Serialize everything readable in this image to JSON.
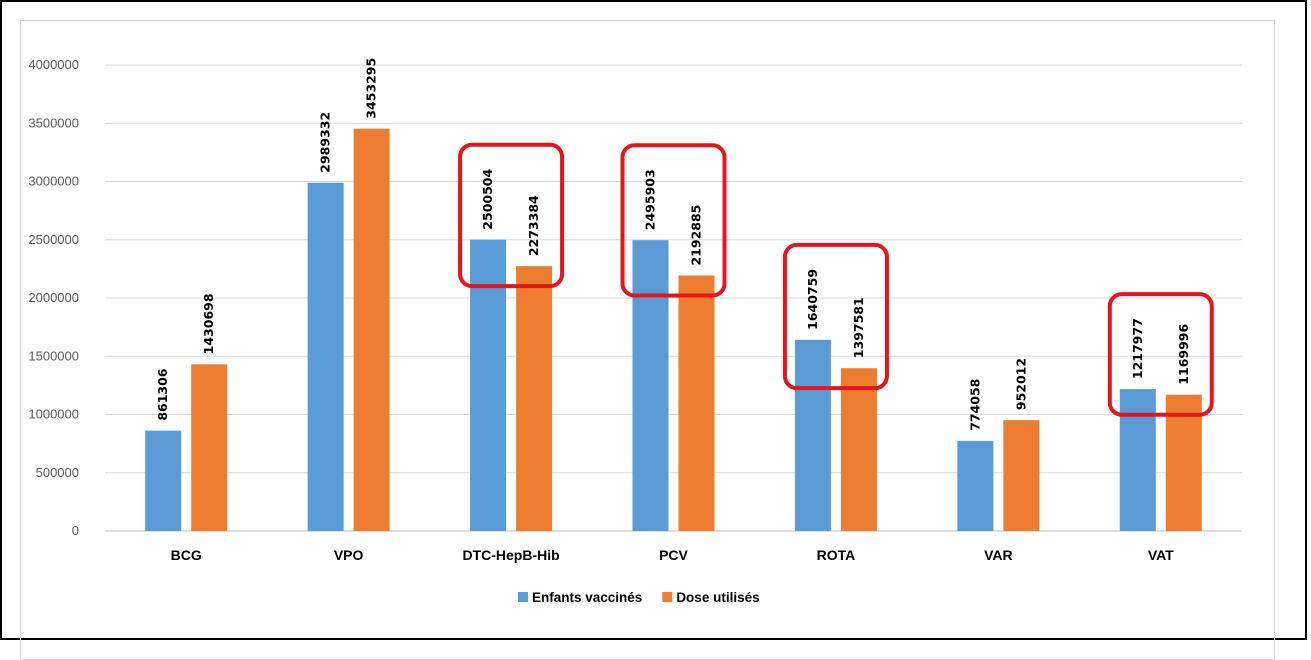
{
  "chart_data": {
    "type": "bar",
    "categories": [
      "BCG",
      "VPO",
      "DTC-HepB-Hib",
      "PCV",
      "ROTA",
      "VAR",
      "VAT"
    ],
    "series": [
      {
        "name": "Enfants vaccinés",
        "color": "#5b9bd5",
        "values": [
          861306,
          2989332,
          2500504,
          2495903,
          1640759,
          774058,
          1217977
        ]
      },
      {
        "name": "Dose utilisés",
        "color": "#ed7d31",
        "values": [
          1430698,
          3453295,
          2273384,
          2192885,
          1397581,
          952012,
          1169996
        ]
      }
    ],
    "ylim": [
      0,
      4000000
    ],
    "yticks": [
      0,
      500000,
      1000000,
      1500000,
      2000000,
      2500000,
      3000000,
      3500000,
      4000000
    ],
    "grid": true,
    "legend": "bottom",
    "highlighted_categories": [
      "DTC-HepB-Hib",
      "PCV",
      "ROTA",
      "VAT"
    ],
    "highlight_color": "#e8141c"
  }
}
